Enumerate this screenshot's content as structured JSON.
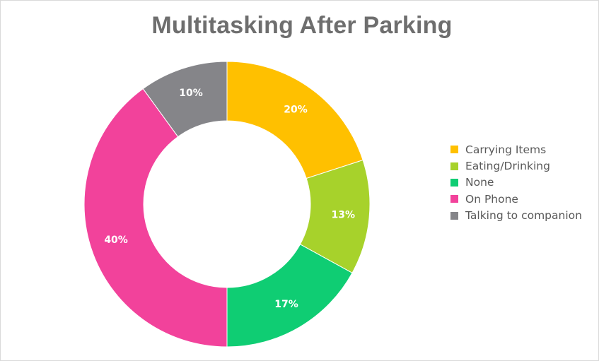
{
  "chart_data": {
    "type": "pie",
    "variant": "doughnut",
    "title": "Multitasking After Parking",
    "categories": [
      "Carrying Items",
      "Eating/Drinking",
      "None",
      "On Phone",
      "Talking to companion"
    ],
    "values": [
      20,
      13,
      17,
      40,
      10
    ],
    "value_labels": [
      "20%",
      "13%",
      "17%",
      "40%",
      "10%"
    ],
    "colors": [
      "#ffc000",
      "#a7d22b",
      "#0fcd73",
      "#f2429b",
      "#858589"
    ],
    "legend_position": "right",
    "start_angle": "top, clockwise"
  }
}
